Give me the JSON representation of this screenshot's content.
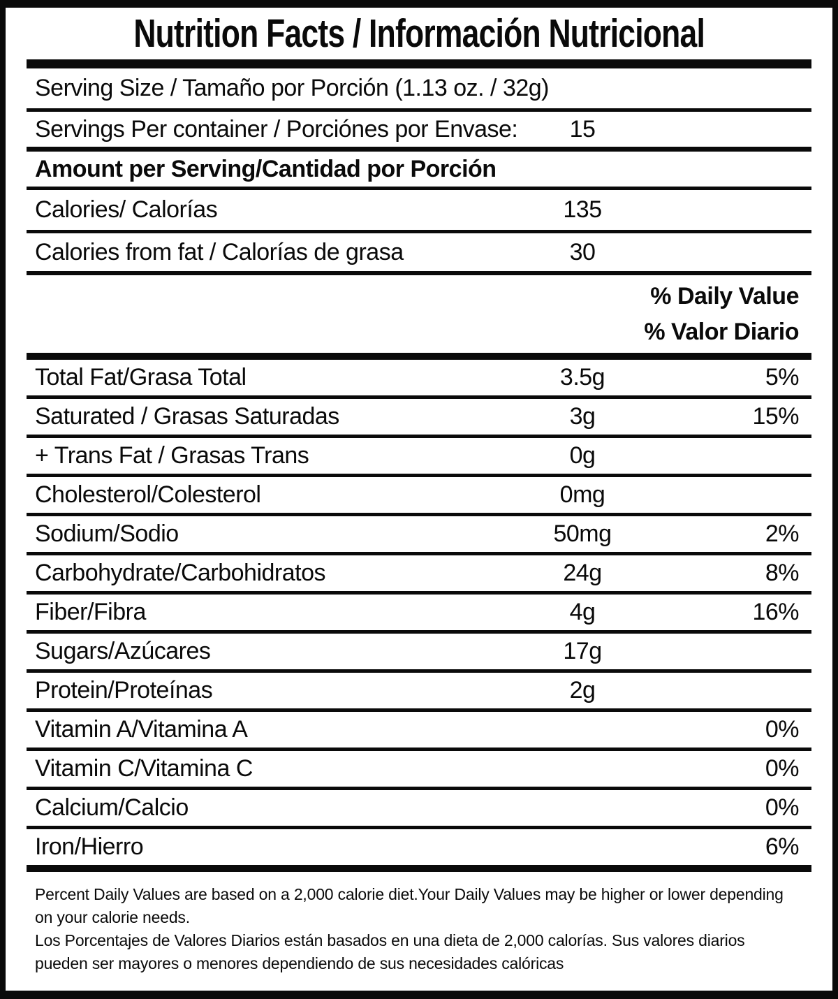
{
  "label": {
    "title": "Nutrition Facts / Información Nutricional",
    "serving_size": "Serving Size / Tamaño por Porción (1.13 oz. / 32g)",
    "servings_per_container": {
      "label": "Servings Per container / Porciónes por Envase:",
      "value": "15"
    },
    "amount_per_serving_heading": "Amount per Serving/Cantidad por Porción",
    "calories": {
      "label": "Calories/ Calorías",
      "value": "135"
    },
    "calories_from_fat": {
      "label": "Calories from fat / Calorías de grasa",
      "value": "30"
    },
    "daily_value_header_en": "% Daily Value",
    "daily_value_header_es": "% Valor Diario",
    "nutrients": [
      {
        "label": "Total Fat/Grasa Total",
        "amount": "3.5g",
        "dv": "5%"
      },
      {
        "label": "Saturated / Grasas Saturadas",
        "amount": "3g",
        "dv": "15%"
      },
      {
        "label": "+ Trans Fat / Grasas Trans",
        "amount": "0g",
        "dv": ""
      },
      {
        "label": "Cholesterol/Colesterol",
        "amount": "0mg",
        "dv": ""
      },
      {
        "label": "Sodium/Sodio",
        "amount": "50mg",
        "dv": "2%"
      },
      {
        "label": "Carbohydrate/Carbohidratos",
        "amount": "24g",
        "dv": "8%"
      },
      {
        "label": "Fiber/Fibra",
        "amount": "4g",
        "dv": "16%"
      },
      {
        "label": "Sugars/Azúcares",
        "amount": "17g",
        "dv": ""
      },
      {
        "label": "Protein/Proteínas",
        "amount": "2g",
        "dv": ""
      },
      {
        "label": "Vitamin A/Vitamina A",
        "amount": "",
        "dv": "0%"
      },
      {
        "label": "Vitamin C/Vitamina C",
        "amount": "",
        "dv": "0%"
      },
      {
        "label": "Calcium/Calcio",
        "amount": "",
        "dv": "0%"
      },
      {
        "label": "Iron/Hierro",
        "amount": "",
        "dv": "6%"
      }
    ],
    "footnote_en": "Percent Daily Values are based on a 2,000 calorie diet.Your Daily Values may be higher or lower depending on your calorie needs.",
    "footnote_es": "Los Porcentajes de Valores Diarios están basados en una dieta de 2,000 calorías. Sus valores diarios pueden ser mayores o menores dependiendo de sus necesidades calóricas",
    "colors": {
      "ink": "#0a0a0a",
      "background": "#ffffff"
    }
  }
}
